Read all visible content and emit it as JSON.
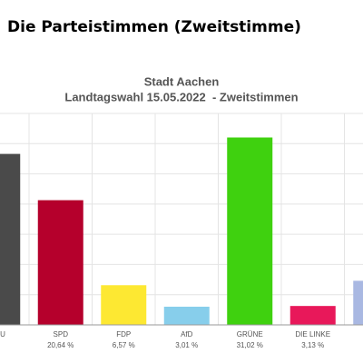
{
  "heading": "Die Parteistimmen (Zweitstimme)",
  "chart_data": {
    "type": "bar",
    "title": "Stadt Aachen",
    "subtitle": "Landtagswahl 15.05.2022  - Zweitstimmen",
    "categories": [
      "CDU",
      "SPD",
      "FDP",
      "AfD",
      "GRÜNE",
      "DIE LINKE",
      null
    ],
    "values": [
      28.3,
      20.64,
      6.57,
      3.01,
      31.02,
      3.13,
      7.3
    ],
    "value_labels": [
      null,
      "20,64 %",
      "6,57 %",
      "3,01 %",
      "31,02 %",
      "3,13 %",
      null
    ],
    "colors": [
      "#4a4a4a",
      "#b5002c",
      "#fde832",
      "#87ceeb",
      "#3fd10f",
      "#e8185a",
      "#a9b8e2"
    ],
    "ylim": [
      0,
      35
    ],
    "yticks": [
      0,
      5,
      10,
      15,
      20,
      25,
      30,
      35
    ],
    "grid": true
  }
}
